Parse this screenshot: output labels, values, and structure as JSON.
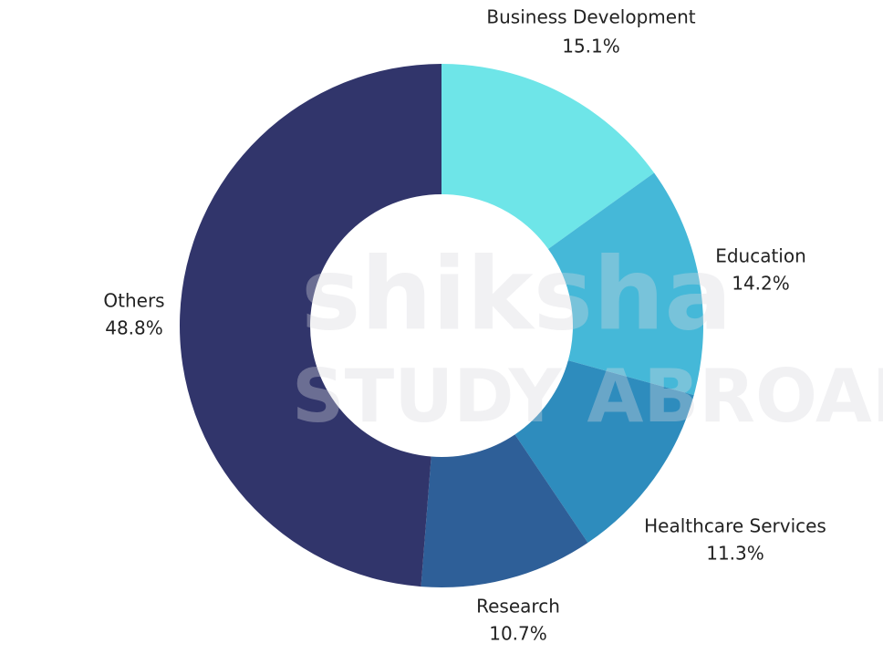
{
  "chart_data": {
    "type": "donut",
    "categories": [
      "Business Development",
      "Education",
      "Healthcare Services",
      "Research",
      "Others"
    ],
    "values": [
      15.1,
      14.2,
      11.3,
      10.7,
      48.8
    ],
    "value_labels": [
      "15.1%",
      "14.2%",
      "11.3%",
      "10.7%",
      "48.8%"
    ],
    "colors": [
      "#6ee5e8",
      "#45b8d8",
      "#2e8cbd",
      "#2e5f98",
      "#31356b"
    ],
    "watermark": [
      "shiksha",
      "STUDY ABROAD"
    ]
  }
}
